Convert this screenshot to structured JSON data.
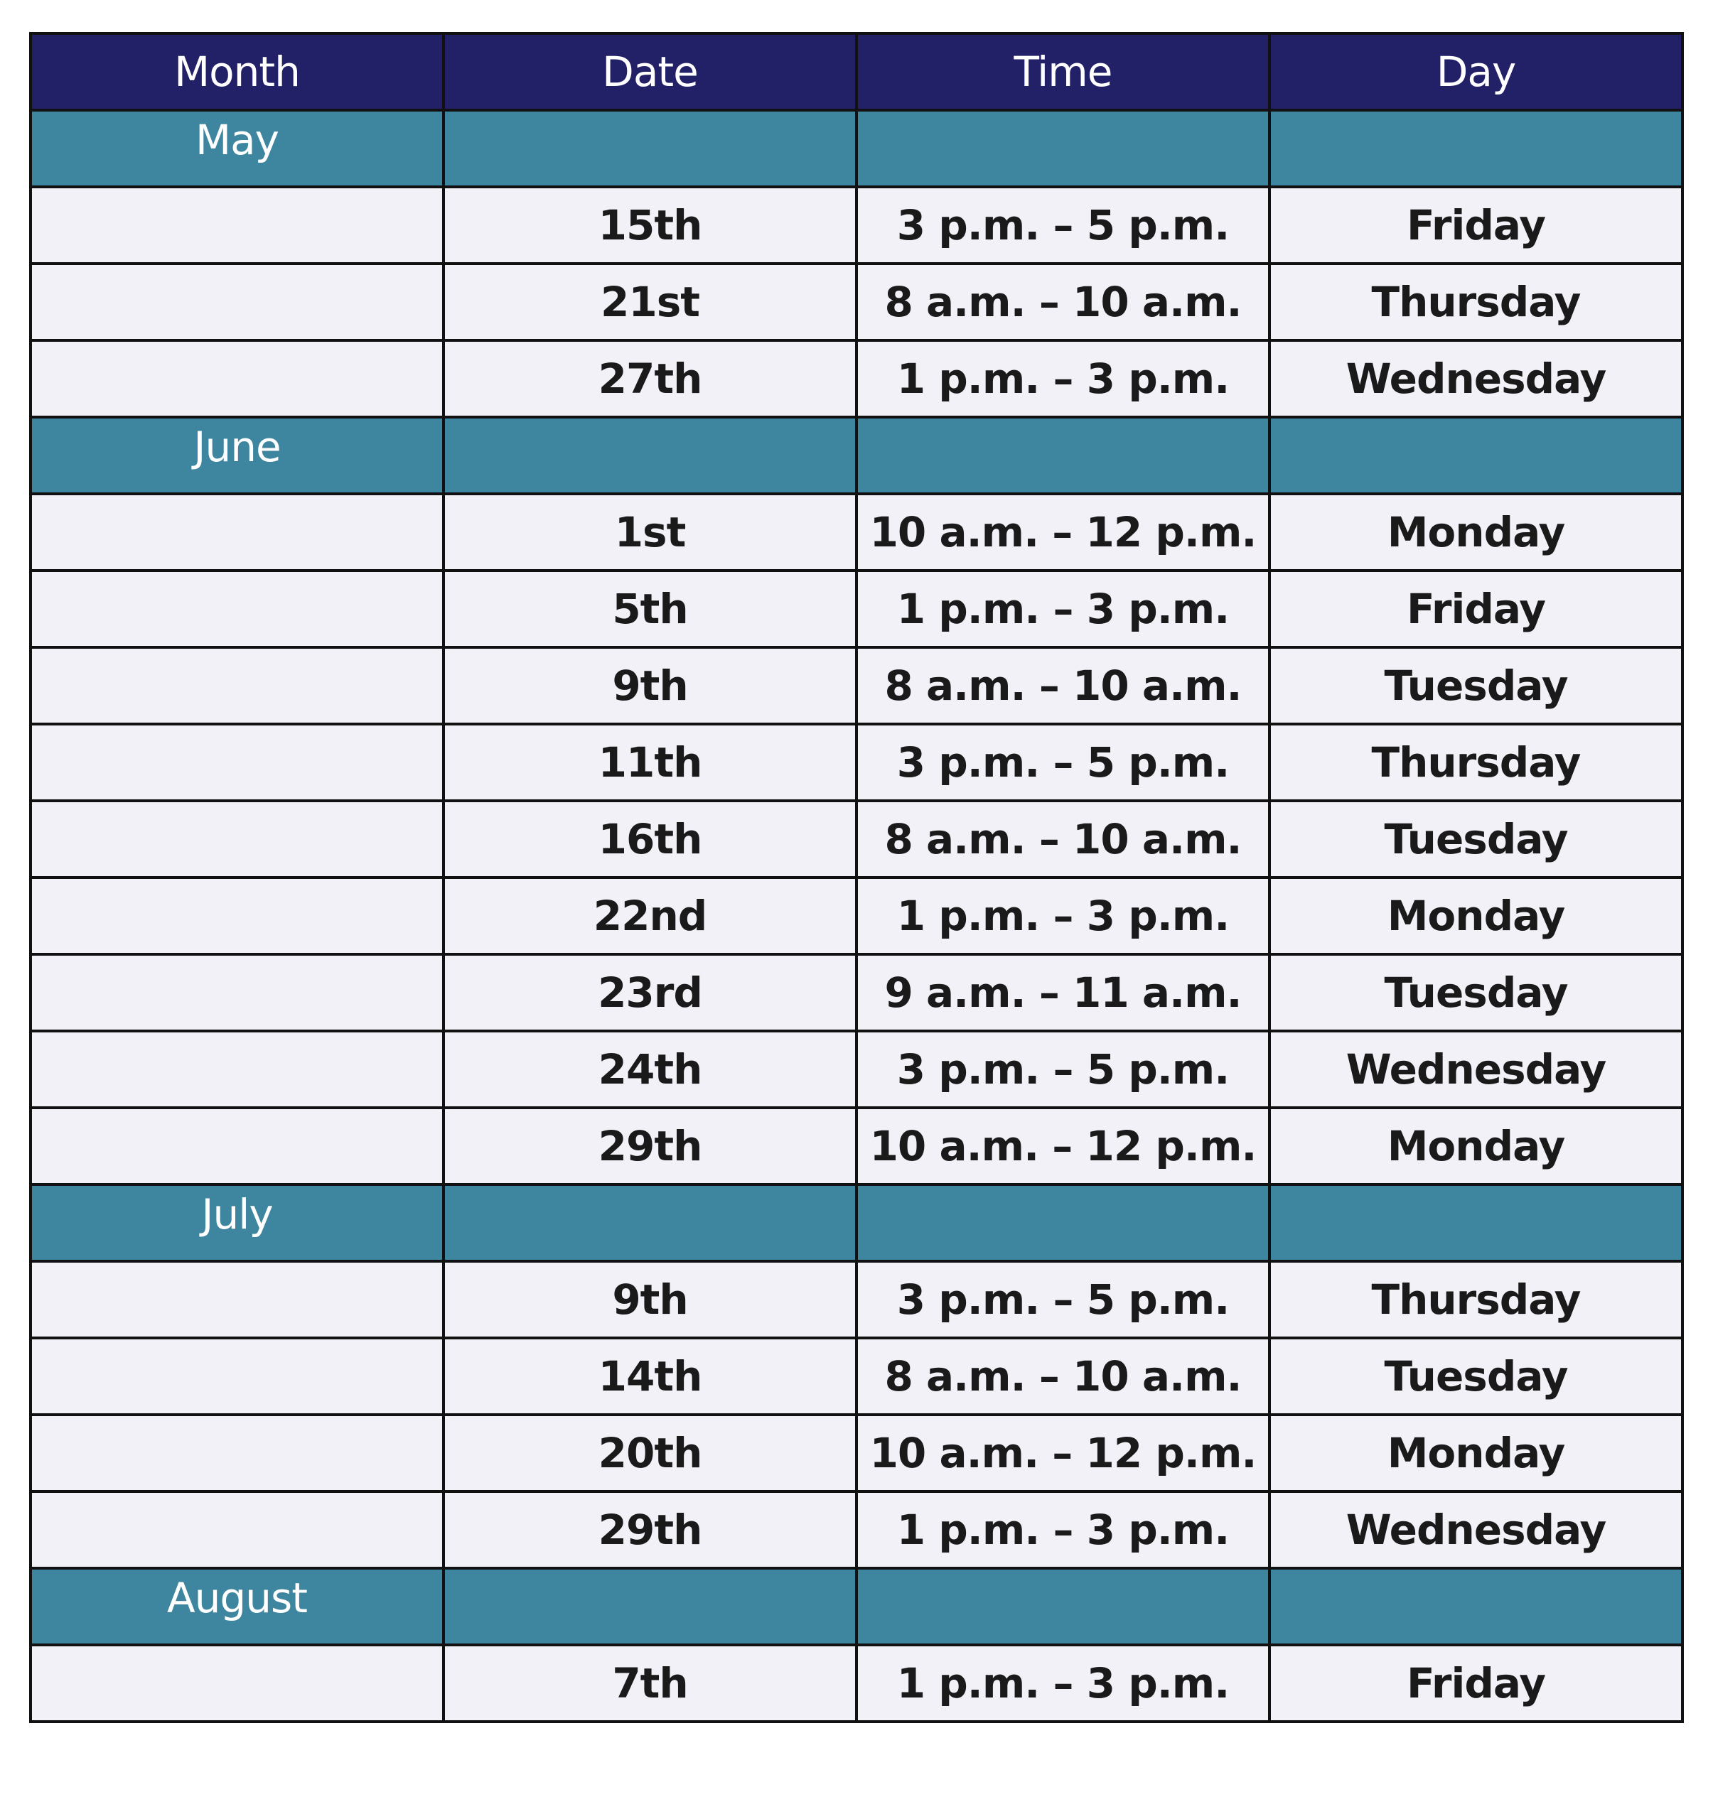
{
  "headers": [
    "Month",
    "Date",
    "Time",
    "Day"
  ],
  "colors": {
    "header_bg": "#222066",
    "month_bg": "#3e869f",
    "row_bg": "#f3f1f8"
  },
  "groups": [
    {
      "month": "May",
      "rows": [
        {
          "date": "15th",
          "time": "3 p.m. – 5 p.m.",
          "day": "Friday"
        },
        {
          "date": "21st",
          "time": "8 a.m. – 10 a.m.",
          "day": "Thursday"
        },
        {
          "date": "27th",
          "time": "1 p.m. – 3 p.m.",
          "day": "Wednesday"
        }
      ]
    },
    {
      "month": "June",
      "rows": [
        {
          "date": "1st",
          "time": "10 a.m. – 12 p.m.",
          "day": "Monday"
        },
        {
          "date": "5th",
          "time": "1 p.m. – 3 p.m.",
          "day": "Friday"
        },
        {
          "date": "9th",
          "time": "8 a.m. – 10 a.m.",
          "day": "Tuesday"
        },
        {
          "date": "11th",
          "time": "3 p.m. – 5 p.m.",
          "day": "Thursday"
        },
        {
          "date": "16th",
          "time": "8 a.m. – 10 a.m.",
          "day": "Tuesday"
        },
        {
          "date": "22nd",
          "time": "1 p.m. – 3 p.m.",
          "day": "Monday"
        },
        {
          "date": "23rd",
          "time": "9 a.m. – 11 a.m.",
          "day": "Tuesday"
        },
        {
          "date": "24th",
          "time": "3 p.m. – 5 p.m.",
          "day": "Wednesday"
        },
        {
          "date": "29th",
          "time": "10 a.m. – 12 p.m.",
          "day": "Monday"
        }
      ]
    },
    {
      "month": "July",
      "rows": [
        {
          "date": "9th",
          "time": "3 p.m. – 5 p.m.",
          "day": "Thursday"
        },
        {
          "date": "14th",
          "time": "8 a.m. – 10 a.m.",
          "day": "Tuesday"
        },
        {
          "date": "20th",
          "time": "10 a.m. – 12 p.m.",
          "day": "Monday"
        },
        {
          "date": "29th",
          "time": "1 p.m. – 3 p.m.",
          "day": "Wednesday"
        }
      ]
    },
    {
      "month": "August",
      "rows": [
        {
          "date": "7th",
          "time": "1 p.m. – 3 p.m.",
          "day": "Friday"
        }
      ]
    }
  ]
}
